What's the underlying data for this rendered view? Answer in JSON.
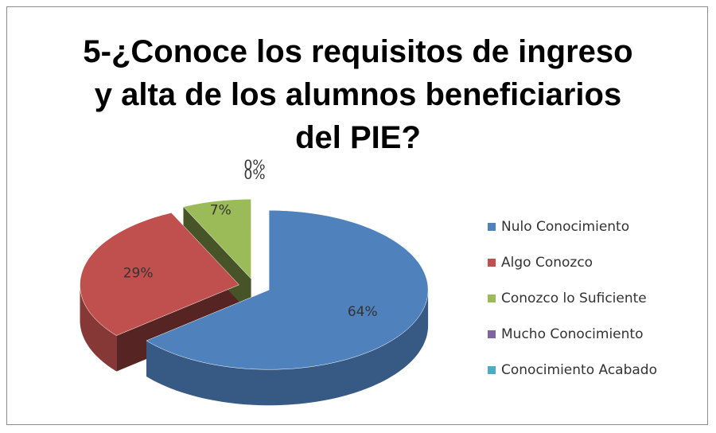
{
  "chart_data": {
    "type": "pie3d",
    "title": "5-¿Conoce los requisitos de ingreso y alta de los alumnos beneficiarios del PIE?",
    "categories": [
      "Nulo Conocimiento",
      "Algo Conozco",
      "Conozco lo Suficiente",
      "Mucho Conocimiento",
      "Conocimiento Acabado"
    ],
    "values": [
      64,
      29,
      7,
      0,
      0
    ],
    "value_labels": [
      "64%",
      "29%",
      "7%",
      "0%",
      "0%"
    ],
    "colors": [
      "#4f81bd",
      "#c0504d",
      "#9bbb59",
      "#8064a2",
      "#4bacc6"
    ],
    "legend": "right"
  }
}
